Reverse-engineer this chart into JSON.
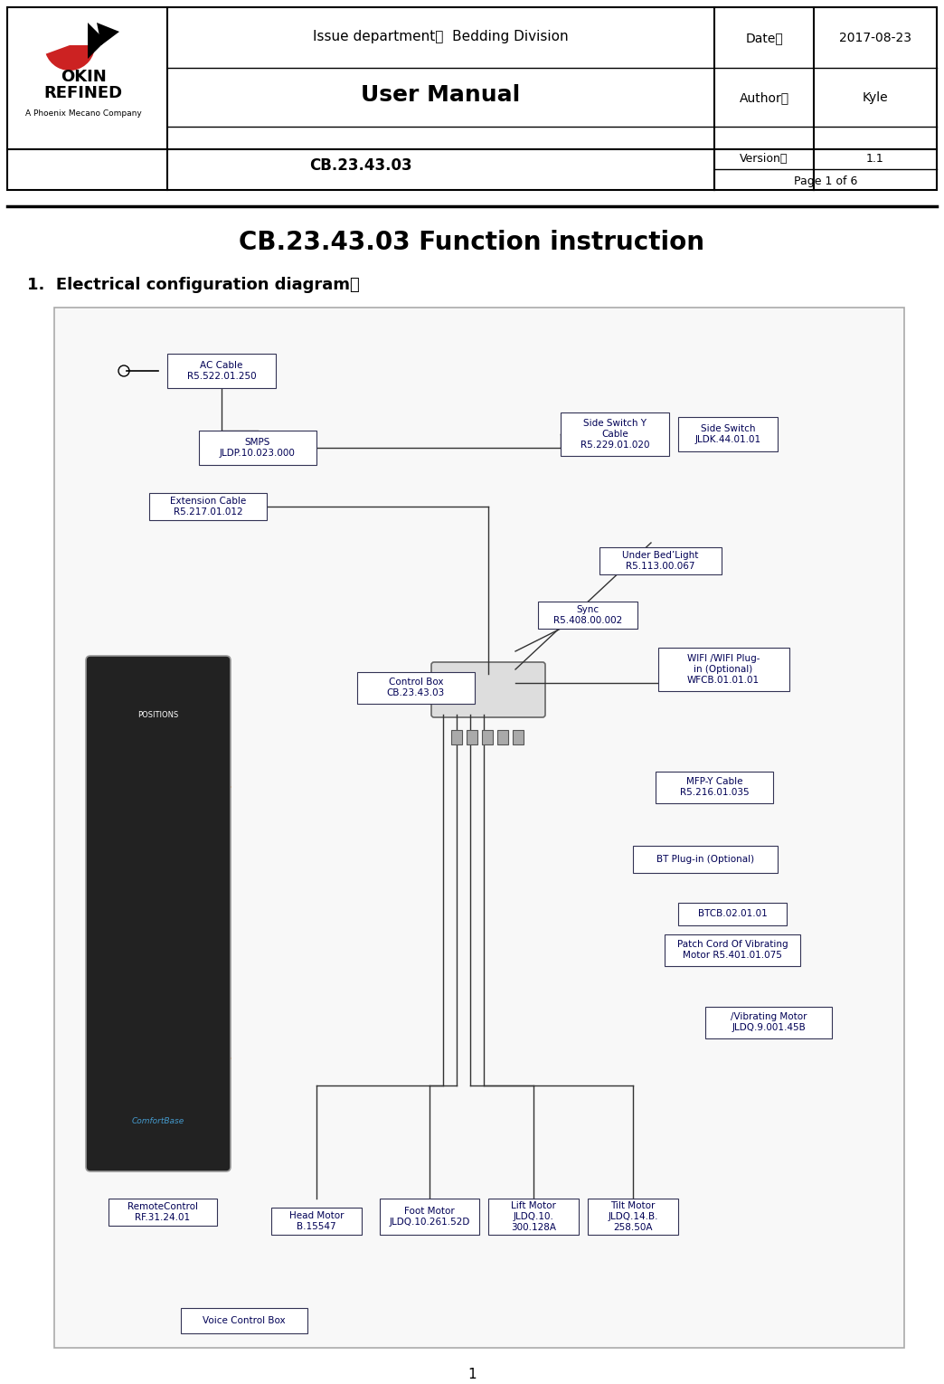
{
  "page_width": 10.44,
  "page_height": 15.3,
  "bg_color": "#ffffff",
  "header": {
    "logo_text_line1": "OKIN",
    "logo_text_line2": "REFINED",
    "logo_subtext": "A Phoenix Mecano Company",
    "issue_dept": "Issue department：  Bedding Division",
    "date_label": "Date：",
    "date_value": "2017-08-23",
    "author_label": "Author：",
    "author_value": "Kyle",
    "manual_title": "User Manual",
    "doc_number": "CB.23.43.03",
    "version_label": "Version：",
    "version_value": "1.1",
    "page_label": "Page 1 of 6"
  },
  "title": "CB.23.43.03 Function instruction",
  "section1": "1.  Electrical configuration diagram：",
  "footer_number": "1",
  "diagram_labels": {
    "ac_cable": "AC Cable\nR5.522.01.250",
    "smps": "SMPS\nJLDP.10.023.000",
    "ext_cable": "Extension Cable\nR5.217.01.012",
    "side_switch_y": "Side Switch Y\nCable\nR5.229.01.020",
    "side_switch": "Side Switch\nJLDK.44.01.01",
    "under_bed": "Under Bed Light\nR5.113.00.067",
    "sync": "Sync\nR5.408.00.002",
    "control_box": "Control Box\nCB.23.43.03",
    "wifi": "WIFI /WIFI Plug-\nin (Optional)\nWFCB.01.01.01",
    "mfpy": "MFP-Y Cable\nR5.216.01.035",
    "bt": "BT Plug-in (Optional)",
    "btcb": "BTCB.02.01.01",
    "patch_cord": "Patch Cord Of Vibrating\nMotor R5.401.01.075",
    "vibrating": "/Vibrating Motor\nJLDQ.9.001.45B",
    "remote": "RemoteControl\nRF.31.24.01",
    "head_motor": "Head Motor\nB.15547",
    "foot_motor": "Foot Motor\nJLDQ.10.261.52D",
    "lift_motor": "Lift Motor\nJLDQ.10.\n300.128A",
    "tilt_motor": "Tilt Motor\nJLDQ.14.B.\n258.50A",
    "voice": "Voice Control Box"
  }
}
